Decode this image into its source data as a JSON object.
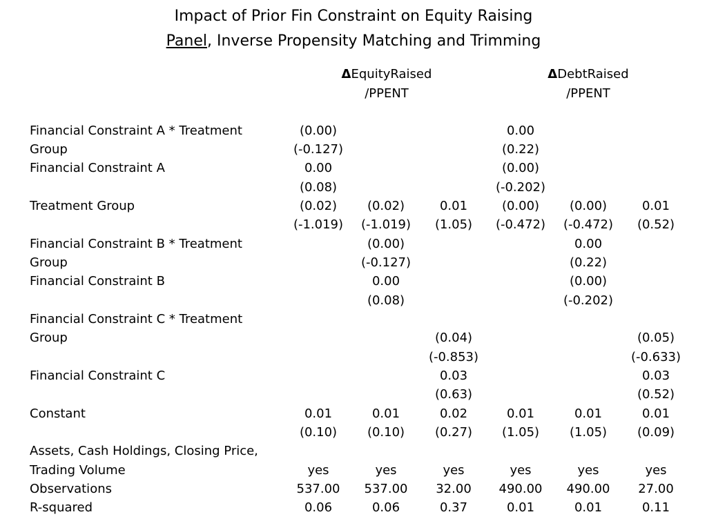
{
  "title": {
    "line1": "Impact of Prior Fin Constraint on Equity Raising",
    "line2_underlined": "Panel",
    "line2_rest": ", Inverse Propensity Matching and Trimming"
  },
  "headers": [
    {
      "delta": "Δ",
      "label1": "EquityRaised",
      "label2": "/PPENT"
    },
    {
      "delta": "Δ",
      "label1": "DebtRaised",
      "label2": "/PPENT"
    }
  ],
  "row_labels": [
    "Financial Constraint A * Treatment",
    "Group",
    "Financial Constraint A",
    "",
    "Treatment Group",
    "",
    "Financial Constraint B * Treatment",
    "Group",
    "Financial Constraint B",
    "",
    "Financial Constraint C * Treatment",
    "Group",
    "",
    "Financial Constraint C",
    "",
    "Constant",
    "",
    "Assets, Cash Holdings, Closing Price,",
    "Trading Volume",
    "Observations",
    "R-squared"
  ],
  "cells": [
    [
      "(0.00)",
      "",
      "",
      "0.00",
      "",
      ""
    ],
    [
      "(-0.127)",
      "",
      "",
      "(0.22)",
      "",
      ""
    ],
    [
      "0.00",
      "",
      "",
      "(0.00)",
      "",
      ""
    ],
    [
      "(0.08)",
      "",
      "",
      "(-0.202)",
      "",
      ""
    ],
    [
      "(0.02)",
      "(0.02)",
      "0.01",
      "(0.00)",
      "(0.00)",
      "0.01"
    ],
    [
      "(-1.019)",
      "(-1.019)",
      "(1.05)",
      "(-0.472)",
      "(-0.472)",
      "(0.52)"
    ],
    [
      "",
      "(0.00)",
      "",
      "",
      "0.00",
      ""
    ],
    [
      "",
      "(-0.127)",
      "",
      "",
      "(0.22)",
      ""
    ],
    [
      "",
      "0.00",
      "",
      "",
      "(0.00)",
      ""
    ],
    [
      "",
      "(0.08)",
      "",
      "",
      "(-0.202)",
      ""
    ],
    [
      "",
      "",
      "",
      "",
      "",
      ""
    ],
    [
      "",
      "",
      "(0.04)",
      "",
      "",
      "(0.05)"
    ],
    [
      "",
      "",
      "(-0.853)",
      "",
      "",
      "(-0.633)"
    ],
    [
      "",
      "",
      "0.03",
      "",
      "",
      "0.03"
    ],
    [
      "",
      "",
      "(0.63)",
      "",
      "",
      "(0.52)"
    ],
    [
      "0.01",
      "0.01",
      "0.02",
      "0.01",
      "0.01",
      "0.01"
    ],
    [
      "(0.10)",
      "(0.10)",
      "(0.27)",
      "(1.05)",
      "(1.05)",
      "(0.09)"
    ],
    [
      "",
      "",
      "",
      "",
      "",
      ""
    ],
    [
      "yes",
      "yes",
      "yes",
      "yes",
      "yes",
      "yes"
    ],
    [
      "537.00",
      "537.00",
      "32.00",
      "490.00",
      "490.00",
      "27.00"
    ],
    [
      "0.06",
      "0.06",
      "0.37",
      "0.01",
      "0.01",
      "0.11"
    ]
  ]
}
